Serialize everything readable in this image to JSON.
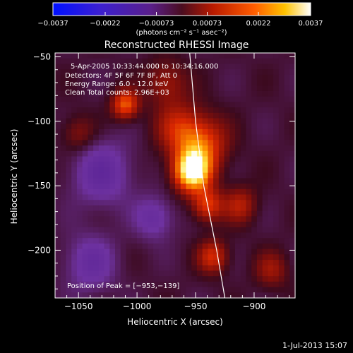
{
  "chart_data": {
    "type": "heatmap",
    "title": "Reconstructed RHESSI Image",
    "xlabel": "Heliocentric X (arcsec)",
    "ylabel": "Heliocentric Y (arcsec)",
    "xlim": [
      -1070,
      -865
    ],
    "ylim": [
      -237,
      -47
    ],
    "xticks": [
      -1050,
      -1000,
      -950,
      -900
    ],
    "yticks": [
      -200,
      -150,
      -100,
      -50
    ],
    "xtick_labels": [
      "−1050",
      "−1000",
      "−950",
      "−900"
    ],
    "ytick_labels": [
      "−200",
      "−150",
      "−100",
      "−50"
    ],
    "colorbar": {
      "range": [
        -0.0037,
        0.0037
      ],
      "tick_values": [
        -0.0037,
        -0.0022,
        -0.00073,
        0.00073,
        0.0022,
        0.0037
      ],
      "tick_labels": [
        "−0.0037",
        "−0.0022",
        "−0.00073",
        "0.00073",
        "0.0022",
        "0.0037"
      ],
      "units_label": "(photons cm⁻² s⁻¹ asec⁻²)"
    },
    "annotations": {
      "time_range": "5-Apr-2005 10:33:44.000 to 10:34:16.000",
      "detectors": "Detectors: 4F 5F 6F 7F 8F, Att 0",
      "energy": "Energy Range: 6.0 - 12.0 keV",
      "method": "Clean    Total counts: 2.96E+03",
      "peak": "Position of Peak = [−953,−139]"
    },
    "peak_position": [
      -953,
      -139
    ],
    "sources": [
      {
        "x": -953,
        "y": -139,
        "amplitude": 1.0,
        "sigma": 11
      },
      {
        "x": -945,
        "y": -118,
        "amplitude": 0.55,
        "sigma": 15
      },
      {
        "x": -965,
        "y": -105,
        "amplitude": 0.35,
        "sigma": 14
      },
      {
        "x": -1010,
        "y": -87,
        "amplitude": 0.6,
        "sigma": 8
      },
      {
        "x": -940,
        "y": -165,
        "amplitude": 0.5,
        "sigma": 9
      },
      {
        "x": -935,
        "y": -205,
        "amplitude": 0.45,
        "sigma": 9
      },
      {
        "x": -912,
        "y": -165,
        "amplitude": 0.35,
        "sigma": 10
      },
      {
        "x": -975,
        "y": -70,
        "amplitude": 0.3,
        "sigma": 12
      },
      {
        "x": -1050,
        "y": -110,
        "amplitude": 0.25,
        "sigma": 10
      },
      {
        "x": -885,
        "y": -215,
        "amplitude": 0.28,
        "sigma": 10
      },
      {
        "x": -1030,
        "y": -140,
        "amplitude": -0.35,
        "sigma": 18
      },
      {
        "x": -1040,
        "y": -210,
        "amplitude": -0.3,
        "sigma": 16
      },
      {
        "x": -985,
        "y": -175,
        "amplitude": -0.3,
        "sigma": 12
      }
    ],
    "limb_curve": [
      [
        -955,
        -47
      ],
      [
        -950,
        -100
      ],
      [
        -943,
        -150
      ],
      [
        -932,
        -200
      ],
      [
        -925,
        -237
      ]
    ],
    "grid": false
  },
  "footer": {
    "timestamp": "1-Jul-2013 15:07"
  }
}
